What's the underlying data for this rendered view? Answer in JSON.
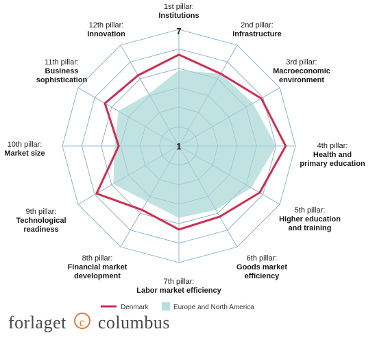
{
  "chart_data": {
    "type": "radar",
    "axes": [
      {
        "prefix": "1st pillar:",
        "name": "Institutions"
      },
      {
        "prefix": "2nd pillar:",
        "name": "Infrastructure"
      },
      {
        "prefix": "3rd pillar:",
        "name": "Macroeconomic environment"
      },
      {
        "prefix": "4th pillar:",
        "name": "Health and primary education"
      },
      {
        "prefix": "5th pillar:",
        "name": "Higher education and training"
      },
      {
        "prefix": "6th pillar:",
        "name": "Goods market efficiency"
      },
      {
        "prefix": "7th pillar:",
        "name": "Labor market efficiency"
      },
      {
        "prefix": "8th pillar:",
        "name": "Financial market development"
      },
      {
        "prefix": "9th pillar:",
        "name": "Technological readiness"
      },
      {
        "prefix": "10th pillar:",
        "name": "Market size"
      },
      {
        "prefix": "11th pillar:",
        "name": "Business sophistication"
      },
      {
        "prefix": "12th pillar:",
        "name": "Innovation"
      }
    ],
    "range": [
      1,
      7
    ],
    "tick_labels": {
      "min": "1",
      "max": "7"
    },
    "series": [
      {
        "name": "Denmark",
        "values": [
          5.7,
          5.3,
          5.9,
          6.5,
          5.8,
          5.2,
          5.3,
          4.8,
          5.9,
          4.1,
          5.4,
          5.2
        ]
      },
      {
        "name": "Europe and North America",
        "values": [
          4.9,
          5.3,
          5.4,
          6.0,
          5.3,
          4.8,
          4.7,
          4.3,
          4.9,
          4.3,
          4.6,
          4.1
        ]
      }
    ],
    "colors": {
      "Denmark": "#cf2d4f",
      "Europe and North America": "#b7dedd",
      "grid": "#7fa9c9"
    },
    "legend_position": "bottom"
  },
  "publisher": {
    "left": "forlaget",
    "mark": "c",
    "right": "columbus"
  }
}
